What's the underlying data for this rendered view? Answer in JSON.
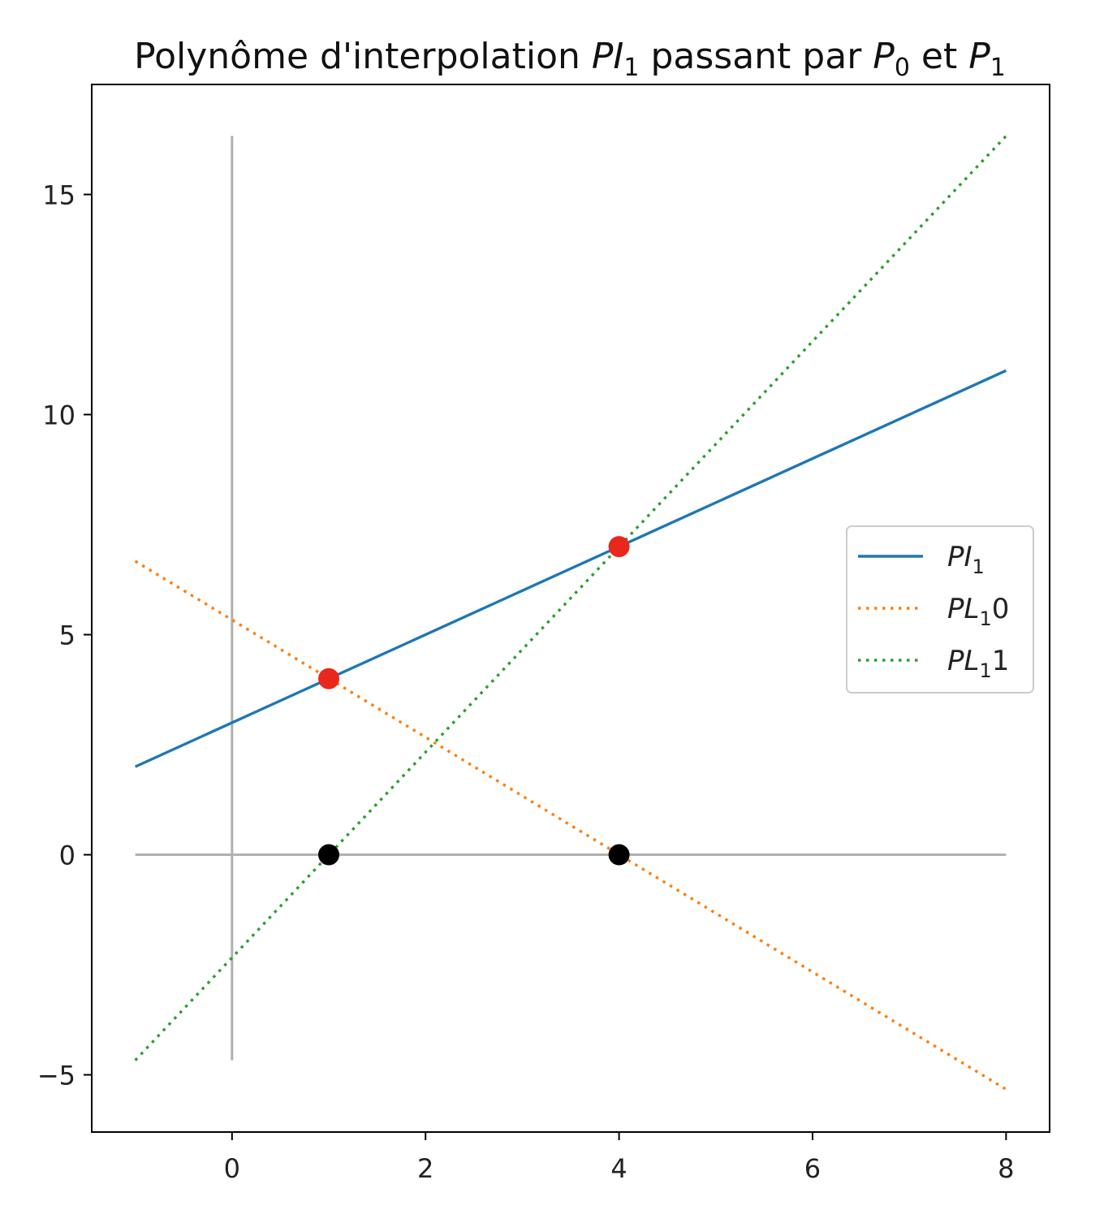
{
  "chart_data": {
    "type": "line",
    "title": {
      "parts": [
        {
          "text": "Polynôme d'interpolation ",
          "style": "normal"
        },
        {
          "text": "PI",
          "style": "italic"
        },
        {
          "text": "1",
          "style": "sub"
        },
        {
          "text": " passant par ",
          "style": "normal"
        },
        {
          "text": "P",
          "style": "italic"
        },
        {
          "text": "0",
          "style": "sub"
        },
        {
          "text": " et ",
          "style": "normal"
        },
        {
          "text": "P",
          "style": "italic"
        },
        {
          "text": "1",
          "style": "sub"
        }
      ]
    },
    "xlim": [
      -1.45,
      8.45
    ],
    "ylim": [
      -6.3,
      17.5
    ],
    "xticks": [
      0,
      2,
      4,
      6,
      8
    ],
    "xtick_labels": [
      "0",
      "2",
      "4",
      "6",
      "8"
    ],
    "yticks": [
      -5,
      0,
      5,
      10,
      15
    ],
    "ytick_labels": [
      "−5",
      "0",
      "5",
      "10",
      "15"
    ],
    "grid": false,
    "legend_position": "center-right",
    "reference_lines": [
      {
        "orientation": "horizontal",
        "y": 0,
        "x_range": [
          -1,
          8
        ],
        "color": "#b0b0b0"
      },
      {
        "orientation": "vertical",
        "x": 0,
        "y_range": [
          -4.67,
          16.33
        ],
        "color": "#b0b0b0"
      }
    ],
    "series": [
      {
        "label_parts": [
          {
            "text": "PI",
            "style": "italic"
          },
          {
            "text": "1",
            "style": "sub"
          }
        ],
        "dash": "solid",
        "color": "#1f77b4",
        "x": [
          -1,
          8
        ],
        "y": [
          2,
          11
        ]
      },
      {
        "label_parts": [
          {
            "text": "PL",
            "style": "italic"
          },
          {
            "text": "1",
            "style": "sub"
          },
          {
            "text": "0",
            "style": "normal"
          }
        ],
        "dash": "dotted",
        "color": "#ff7f0e",
        "x": [
          -1,
          8
        ],
        "y": [
          6.67,
          -5.33
        ]
      },
      {
        "label_parts": [
          {
            "text": "PL",
            "style": "italic"
          },
          {
            "text": "1",
            "style": "sub"
          },
          {
            "text": "1",
            "style": "normal"
          }
        ],
        "dash": "dotted",
        "color": "#2ca02c",
        "x": [
          -1,
          8
        ],
        "y": [
          -4.67,
          16.33
        ]
      }
    ],
    "points": [
      {
        "x": 1,
        "y": 4,
        "color": "#e8281c"
      },
      {
        "x": 4,
        "y": 7,
        "color": "#e8281c"
      },
      {
        "x": 1,
        "y": 0,
        "color": "#000000"
      },
      {
        "x": 4,
        "y": 0,
        "color": "#000000"
      }
    ]
  }
}
